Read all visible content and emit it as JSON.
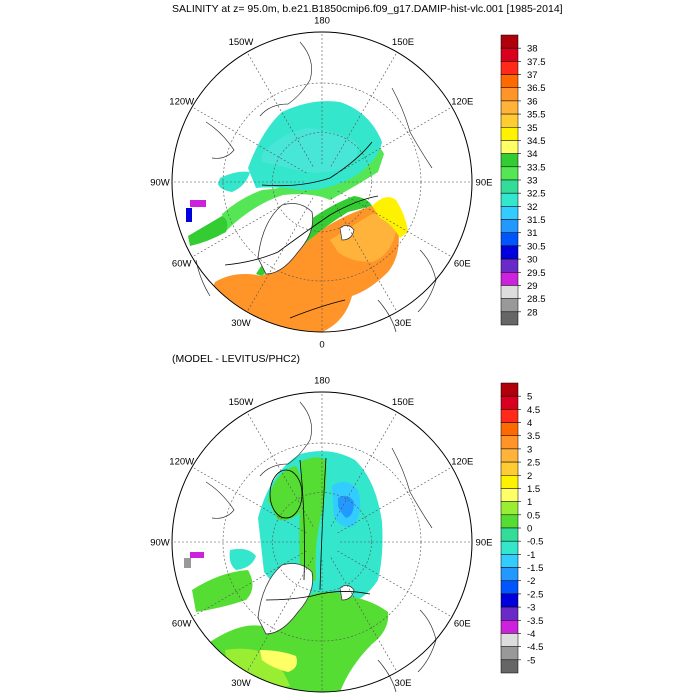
{
  "main_title": "SALINITY at z=  95.0m, b.e21.B1850cmip6.f09_g17.DAMIP-hist-vlc.001 [1985-2014]",
  "sub_title": "(MODEL - LEVITUS/PHC2)",
  "longitude_labels": [
    "180",
    "150E",
    "120E",
    "90E",
    "60E",
    "30E",
    "0",
    "30W",
    "60W",
    "90W",
    "120W",
    "150W"
  ],
  "colors": {
    "land": "#ffffff",
    "coast": "#333333",
    "grid": "#555555",
    "contour": "#000000"
  },
  "top_colorbar": {
    "labels": [
      "38",
      "37.5",
      "37",
      "36.5",
      "36",
      "35.5",
      "35",
      "34.5",
      "34",
      "33.5",
      "33",
      "32.5",
      "32",
      "31.5",
      "31",
      "30.5",
      "30",
      "29.5",
      "29",
      "28.5",
      "28"
    ],
    "colors": [
      "#b0000c",
      "#d8001e",
      "#ff2a1a",
      "#ff6a00",
      "#ff9429",
      "#ffb33a",
      "#ffcc33",
      "#fff200",
      "#ffff66",
      "#33cc33",
      "#55e655",
      "#33dd99",
      "#33e6cc",
      "#33ccff",
      "#2299ff",
      "#0055ff",
      "#0000dd",
      "#6a2ac8",
      "#cc22dd",
      "#dddddd",
      "#999999",
      "#666666"
    ]
  },
  "bottom_colorbar": {
    "labels": [
      "5",
      "4.5",
      "4",
      "3.5",
      "3",
      "2.5",
      "2",
      "1.5",
      "1",
      "0.5",
      "0",
      "-0.5",
      "-1",
      "-1.5",
      "-2",
      "-2.5",
      "-3",
      "-3.5",
      "-4",
      "-4.5",
      "-5"
    ],
    "colors": [
      "#b0000c",
      "#d8001e",
      "#ff2a1a",
      "#ff6a00",
      "#ff9429",
      "#ffb33a",
      "#ffcc33",
      "#fff200",
      "#ffff66",
      "#99ee33",
      "#55dd33",
      "#33dd99",
      "#33e6cc",
      "#33ccff",
      "#2299ff",
      "#0055ff",
      "#0000dd",
      "#6a2ac8",
      "#cc22dd",
      "#dddddd",
      "#999999",
      "#666666"
    ]
  }
}
